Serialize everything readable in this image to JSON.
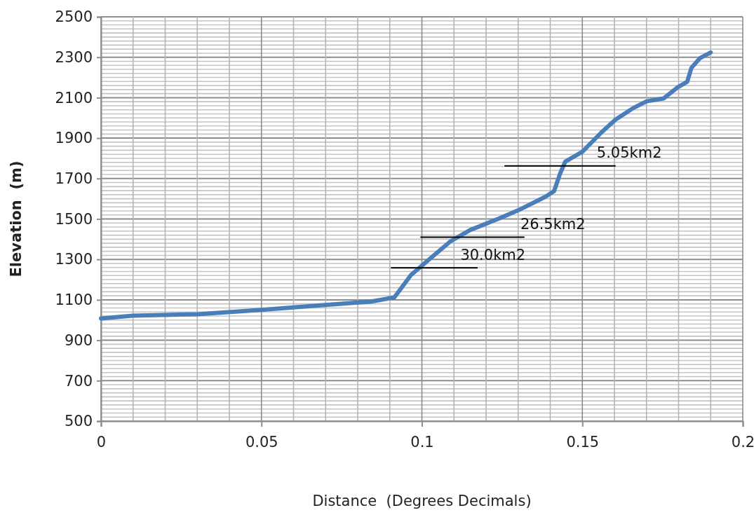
{
  "chart_data": {
    "type": "line",
    "xlabel": "Distance  (Degrees Decimals)",
    "ylabel": "Elevation  (m)",
    "xlim": [
      0,
      0.2
    ],
    "xticks": [
      0,
      0.05,
      0.1,
      0.15,
      0.2
    ],
    "ylim": [
      500,
      2500
    ],
    "yticks": [
      500,
      700,
      900,
      1100,
      1300,
      1500,
      1700,
      1900,
      2100,
      2300,
      2500
    ],
    "grid": true,
    "marker": "none",
    "line_style": "solid",
    "series": [
      {
        "color": "#4a7ebb",
        "x": [
          0,
          0.01,
          0.03,
          0.05,
          0.067,
          0.084,
          0.0914,
          0.0966,
          0.1027,
          0.1089,
          0.115,
          0.1237,
          0.1307,
          0.1386,
          0.1412,
          0.143,
          0.1447,
          0.15,
          0.156,
          0.1604,
          0.1657,
          0.17,
          0.1753,
          0.1797,
          0.1827,
          0.184,
          0.1867,
          0.19
        ],
        "values": [
          1008,
          1022,
          1029,
          1050,
          1071,
          1091,
          1112,
          1223,
          1306,
          1389,
          1445,
          1500,
          1548,
          1611,
          1638,
          1722,
          1784,
          1832,
          1929,
          1992,
          2047,
          2082,
          2096,
          2151,
          2179,
          2248,
          2296,
          2324
        ]
      },
      {
        "type": "line",
        "color": "#000000",
        "x": [
          0.0905,
          0.1172
        ],
        "values": [
          1258,
          1258
        ]
      },
      {
        "type": "line",
        "color": "#000000",
        "x": [
          0.0997,
          0.1318
        ],
        "values": [
          1410,
          1410
        ]
      },
      {
        "type": "line",
        "color": "#000000",
        "x": [
          0.1259,
          0.1602
        ],
        "values": [
          1763,
          1763
        ]
      }
    ],
    "annotations": [
      {
        "text": "30.0km2",
        "x": 0.112,
        "y": 1258
      },
      {
        "text": "26.5km2",
        "x": 0.1307,
        "y": 1410
      },
      {
        "text": "5.05km2",
        "x": 0.1545,
        "y": 1763
      }
    ]
  }
}
